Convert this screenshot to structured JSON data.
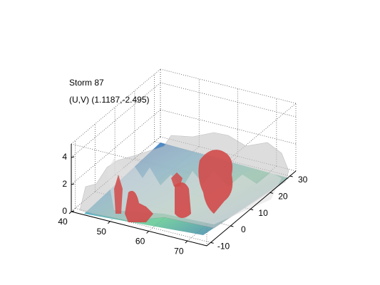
{
  "chart_data": {
    "type": "isosurface3d",
    "title": "Storm 87",
    "subtitle": "(U,V) (1.1187,-2.495)",
    "xlim": [
      40,
      75
    ],
    "xticks": [
      40,
      50,
      60,
      70
    ],
    "ylim": [
      -12,
      33
    ],
    "yticks": [
      -10,
      0,
      10,
      20,
      30
    ],
    "zlim": [
      0,
      5
    ],
    "zticks": [
      0,
      2,
      4
    ],
    "grid": true
  }
}
